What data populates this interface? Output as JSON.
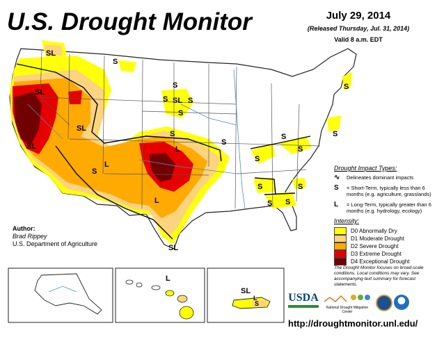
{
  "title": "U.S. Drought Monitor",
  "date": "July 29, 2014",
  "released": "(Released Thursday, Jul. 31, 2014)",
  "valid": "Valid 8 a.m. EDT",
  "author": {
    "label": "Author:",
    "name": "Brad Rippey",
    "org": "U.S. Department of Agriculture"
  },
  "legend": {
    "impact_title": "Drought Impact Types:",
    "delineates": "Delineates dominant impacts",
    "short_symbol": "S",
    "short_text": "= Short-Term, typically less than 6 months (e.g. agriculture, grasslands)",
    "long_symbol": "L",
    "long_text": "= Long-Term, typically greater than 6 months (e.g. hydrology, ecology)",
    "intensity_title": "Intensity:",
    "intensity": [
      {
        "label": "D0 Abnormally Dry",
        "color": "#ffff00"
      },
      {
        "label": "D1 Moderate Drought",
        "color": "#fcd37f"
      },
      {
        "label": "D2 Severe Drought",
        "color": "#ffaa00"
      },
      {
        "label": "D3 Extreme Drought",
        "color": "#e60000"
      },
      {
        "label": "D4 Exceptional Drought",
        "color": "#730000"
      }
    ]
  },
  "footnote": "The Drought Monitor focuses on broad-scale conditions. Local conditions may vary. See accompanying text summary for forecast statements.",
  "url": "http://droughtmonitor.unl.edu/",
  "logos": {
    "usda": "USDA",
    "ndmc": "National Drought Mitigation Center"
  },
  "map_labels": {
    "sl": "SL",
    "s": "S",
    "l": "L"
  }
}
